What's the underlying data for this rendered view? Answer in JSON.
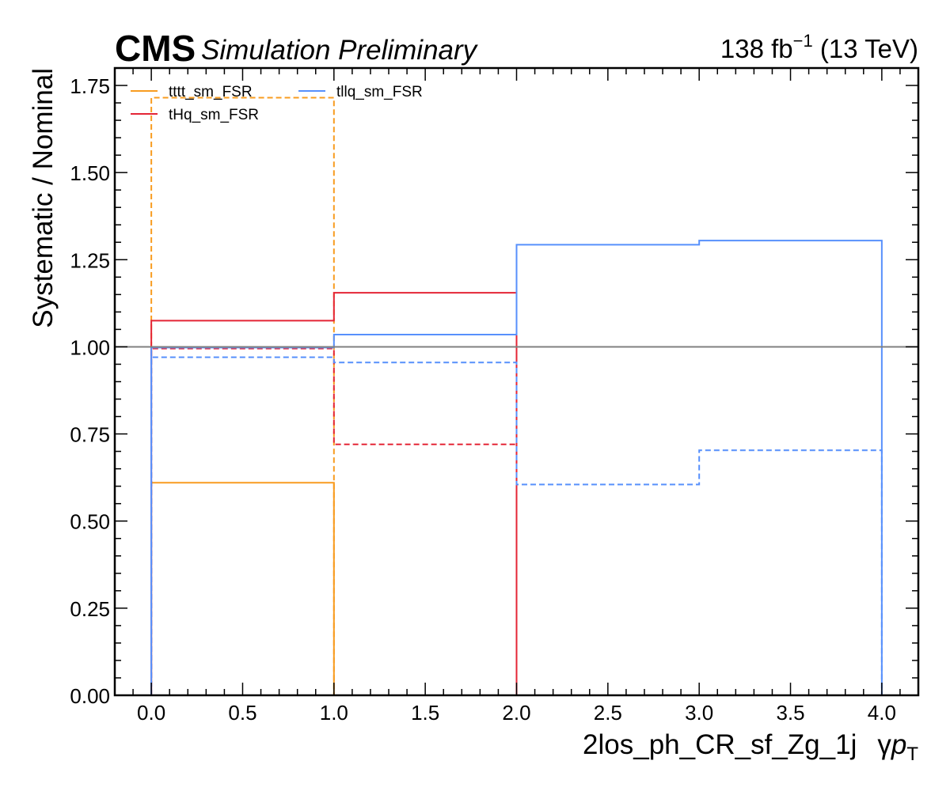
{
  "header": {
    "cms": "CMS",
    "status": "Simulation Preliminary",
    "lumi_value": "138 fb",
    "lumi_exp": "−1",
    "lumi_energy": " (13 TeV)"
  },
  "chart_data": {
    "type": "line",
    "xlabel_main": "2los_ph_CR_sf_Zg_1j",
    "xlabel_gamma": "γ",
    "xlabel_p": "p",
    "xlabel_sub": "T",
    "ylabel": "Systematic / Nominal",
    "xlim": [
      -0.2,
      4.2
    ],
    "ylim": [
      0,
      1.8
    ],
    "xticks": [
      0.0,
      0.5,
      1.0,
      1.5,
      2.0,
      2.5,
      3.0,
      3.5,
      4.0
    ],
    "xtick_labels": [
      "0.0",
      "0.5",
      "1.0",
      "1.5",
      "2.0",
      "2.5",
      "3.0",
      "3.5",
      "4.0"
    ],
    "yticks": [
      0.0,
      0.25,
      0.5,
      0.75,
      1.0,
      1.25,
      1.5,
      1.75
    ],
    "ytick_labels": [
      "0.00",
      "0.25",
      "0.50",
      "0.75",
      "1.00",
      "1.25",
      "1.50",
      "1.75"
    ],
    "reference_line": 1.0,
    "legend_placement": "top-left",
    "series": [
      {
        "name": "tttt_sm_FSR",
        "color": "#f89c20",
        "bin_edges": [
          0,
          1
        ],
        "up": [
          0.61
        ],
        "down": [
          1.715
        ]
      },
      {
        "name": "tHq_sm_FSR",
        "color": "#e42536",
        "bin_edges": [
          0,
          1,
          2
        ],
        "up": [
          1.075,
          1.155
        ],
        "down": [
          0.995,
          0.72
        ]
      },
      {
        "name": "tllq_sm_FSR",
        "color": "#5790fc",
        "bin_edges": [
          0,
          1,
          2,
          3,
          4
        ],
        "up": [
          0.998,
          1.035,
          1.293,
          1.305
        ],
        "down": [
          0.97,
          0.955,
          0.605,
          0.703
        ]
      }
    ]
  }
}
